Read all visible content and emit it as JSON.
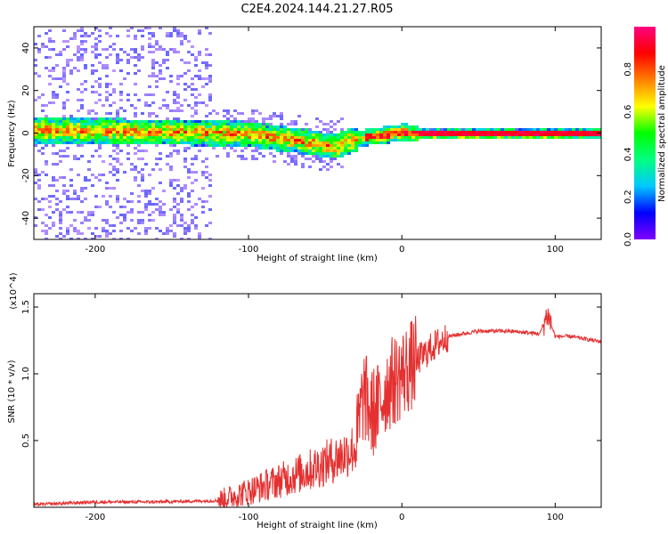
{
  "title": "C2E4.2024.144.21.27.R05",
  "chart_data": [
    {
      "type": "heatmap",
      "xlabel": "Height of straight line (km)",
      "ylabel": "Frequency (Hz)",
      "xlim": [
        -240,
        130
      ],
      "ylim": [
        -50,
        50
      ],
      "x_ticks": [
        -200,
        -100,
        0,
        100
      ],
      "y_ticks": [
        -40,
        -20,
        0,
        20,
        40
      ],
      "colorbar": {
        "label": "Normalized spectral amplitude",
        "range": [
          0,
          1
        ],
        "ticks": [
          "0.0",
          "0.2",
          "0.4",
          "0.6",
          "0.8"
        ],
        "colormap": [
          "#8000ff",
          "#0000ff",
          "#00c8ff",
          "#00ff80",
          "#00ff00",
          "#ffff00",
          "#ff8000",
          "#ff0000",
          "#ff0080"
        ]
      },
      "ridge": {
        "x": [
          -240,
          -200,
          -150,
          -100,
          -80,
          -60,
          -45,
          -35,
          -20,
          0,
          10,
          130
        ],
        "center_freq": [
          2,
          1.5,
          1,
          0,
          -2,
          -4,
          -6,
          -3,
          -1,
          1,
          0,
          0
        ]
      }
    },
    {
      "type": "line",
      "xlabel": "Height of straight line (km)",
      "ylabel": "SNR (10 * v/v)",
      "y_multiplier": "(x10^4)",
      "xlim": [
        -240,
        130
      ],
      "ylim": [
        0,
        1.6
      ],
      "x_ticks": [
        -200,
        -100,
        0,
        100
      ],
      "y_ticks": [
        "0.5",
        "1.0",
        "1.5"
      ],
      "series": [
        {
          "color": "#e53030",
          "x": [
            -240,
            -200,
            -160,
            -120,
            -100,
            -80,
            -60,
            -40,
            -30,
            -25,
            -20,
            -15,
            -10,
            0,
            10,
            20,
            30,
            50,
            70,
            90,
            95,
            100,
            110,
            130
          ],
          "y": [
            0.02,
            0.04,
            0.04,
            0.05,
            0.12,
            0.2,
            0.28,
            0.38,
            0.45,
            0.85,
            0.7,
            0.75,
            0.9,
            1.0,
            1.1,
            1.2,
            1.28,
            1.32,
            1.32,
            1.3,
            1.45,
            1.28,
            1.28,
            1.24
          ]
        }
      ]
    }
  ]
}
